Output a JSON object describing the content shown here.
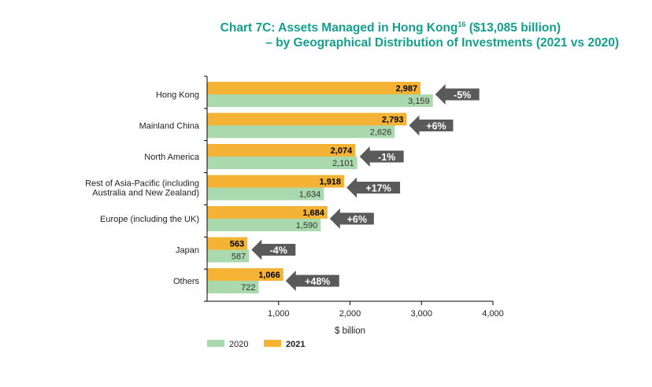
{
  "title": {
    "line1_main": "Chart 7C: Assets Managed in Hong Kong",
    "line1_sup": "16",
    "line1_tail": " ($13,085 billion)",
    "line2": "– by Geographical Distribution of Investments (2021 vs 2020)"
  },
  "colors": {
    "title": "#13a08e",
    "series_2021": "#f5b335",
    "series_2020": "#a9d9ad",
    "arrow": "#5a5a5a",
    "axis": "#000000"
  },
  "chart_data": {
    "type": "bar",
    "orientation": "horizontal",
    "categories": [
      [
        "Hong Kong"
      ],
      [
        "Mainland China"
      ],
      [
        "North America"
      ],
      [
        "Rest of Asia-Pacific (including",
        "Australia and New Zealand)"
      ],
      [
        "Europe (including the UK)"
      ],
      [
        "Japan"
      ],
      [
        "Others"
      ]
    ],
    "series": [
      {
        "name": "2021",
        "values": [
          2987,
          2793,
          2074,
          1918,
          1684,
          563,
          1066
        ],
        "labels": [
          "2,987",
          "2,793",
          "2,074",
          "1,918",
          "1,684",
          "563",
          "1,066"
        ]
      },
      {
        "name": "2020",
        "values": [
          3159,
          2626,
          2101,
          1634,
          1590,
          587,
          722
        ],
        "labels": [
          "3,159",
          "2,626",
          "2,101",
          "1,634",
          "1,590",
          "587",
          "722"
        ]
      }
    ],
    "changes": [
      {
        "label": "-5%",
        "direction": "left"
      },
      {
        "label": "+6%",
        "direction": "left"
      },
      {
        "label": "-1%",
        "direction": "left"
      },
      {
        "label": "+17%",
        "direction": "left"
      },
      {
        "label": "+6%",
        "direction": "left"
      },
      {
        "label": "-4%",
        "direction": "left"
      },
      {
        "label": "+48%",
        "direction": "left"
      }
    ],
    "xlim": [
      0,
      4000
    ],
    "xticks": [
      1000,
      2000,
      3000,
      4000
    ],
    "xtick_labels": [
      "1,000",
      "2,000",
      "3,000",
      "4,000"
    ],
    "xlabel": "$ billion",
    "legend": [
      {
        "name": "2020",
        "bold": false
      },
      {
        "name": "2021",
        "bold": true
      }
    ],
    "legend_position": "bottom-left",
    "grid": false
  }
}
